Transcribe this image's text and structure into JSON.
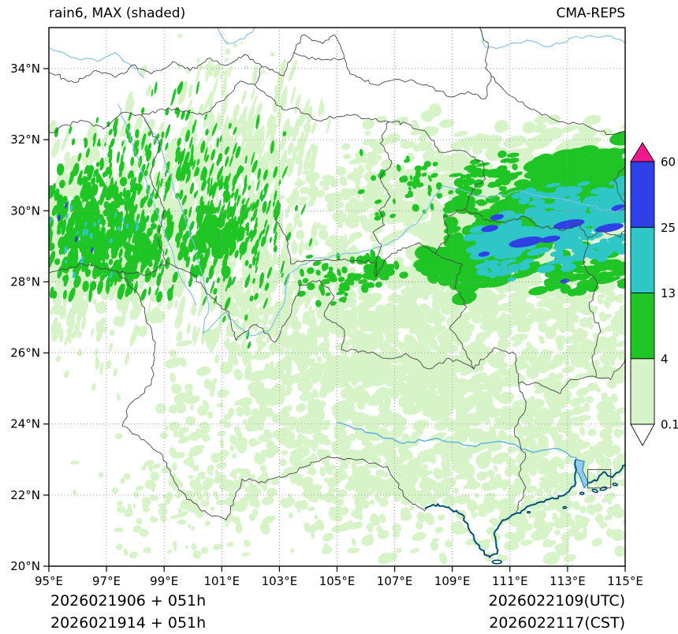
{
  "header": {
    "title": "rain6, MAX (shaded)",
    "model": "CMA-REPS"
  },
  "footer": {
    "left_lines": [
      "2026021906 + 051h",
      "2026021914 + 051h"
    ],
    "right_lines": [
      "2026022109(UTC)",
      "2026022117(CST)"
    ]
  },
  "axes": {
    "lon_min": 95,
    "lon_max": 115,
    "lat_min": 20,
    "lat_top": 35.15,
    "lon_ticks": [
      {
        "value": 95,
        "label": "95°E"
      },
      {
        "value": 97,
        "label": "97°E"
      },
      {
        "value": 99,
        "label": "99°E"
      },
      {
        "value": 101,
        "label": "101°E"
      },
      {
        "value": 103,
        "label": "103°E"
      },
      {
        "value": 105,
        "label": "105°E"
      },
      {
        "value": 107,
        "label": "107°E"
      },
      {
        "value": 109,
        "label": "109°E"
      },
      {
        "value": 111,
        "label": "111°E"
      },
      {
        "value": 113,
        "label": "113°E"
      },
      {
        "value": 115,
        "label": "115°E"
      }
    ],
    "lat_ticks": [
      {
        "value": 20,
        "label": "20°N"
      },
      {
        "value": 22,
        "label": "22°N"
      },
      {
        "value": 24,
        "label": "24°N"
      },
      {
        "value": 26,
        "label": "26°N"
      },
      {
        "value": 28,
        "label": "28°N"
      },
      {
        "value": 30,
        "label": "30°N"
      },
      {
        "value": 32,
        "label": "32°N"
      },
      {
        "value": 34,
        "label": "34°N"
      }
    ]
  },
  "colorbar": {
    "levels": [
      "0.1",
      "4",
      "13",
      "25",
      "60"
    ],
    "segment_colors": [
      "#d7f3c8",
      "#1fc524",
      "#2fc6c8",
      "#2d41e6"
    ],
    "over_color": "#ee1a8c",
    "under_color": "#ffffff"
  },
  "chart_data": {
    "type": "map",
    "title": "rain6, MAX (shaded)",
    "model": "CMA-REPS",
    "init_run": "2026021906 + 051h",
    "init_run_cst": "2026021914 + 051h",
    "valid_utc": "2026022109(UTC)",
    "valid_cst": "2026022117(CST)",
    "extent": {
      "lon": [
        95,
        115
      ],
      "lat": [
        20,
        35.15
      ]
    },
    "shading_levels_mm": [
      0.1,
      4,
      13,
      25,
      60
    ],
    "features": [
      {
        "region": "SE Tibet / W Sichuan 95-100E 28-30.5N",
        "value_mm": "4-25 with isolated 25-60 cells",
        "pattern": "dense speckled cluster"
      },
      {
        "region": "W Sichuan plateau 99-103E 28-32.5N",
        "value_mm": "0.1-13",
        "pattern": "NNE-oriented narrow streaks"
      },
      {
        "region": "Middle Yangtze band 108-115E 27.5-31.5N",
        "value_mm": "13-25 widespread, 25-60 embedded cores near 110-115E 28.5-30.5N",
        "pattern": "ENE-oriented heavy rain band"
      },
      {
        "region": "South China 99-115E 20-28N",
        "value_mm": "0.1-4",
        "pattern": "patchy light totals"
      },
      {
        "region": "North of 32N",
        "value_mm": "mostly < 0.1",
        "pattern": "dry"
      }
    ]
  },
  "precip": {
    "palette": {
      "pale": "#d7f3c8",
      "green": "#1fc524",
      "cyan": "#2fc6c8",
      "blue": "#2d41e6"
    },
    "clusters": [
      {
        "color": "pale",
        "c": [
          96.6,
          28.7
        ],
        "s": [
          1.35,
          0.95
        ],
        "n": 320,
        "rx": [
          0.07,
          0.2
        ],
        "ry": [
          0.12,
          0.3
        ],
        "rot": 12
      },
      {
        "color": "pale",
        "c": [
          97.3,
          30.0
        ],
        "s": [
          1.6,
          1.1
        ],
        "n": 300,
        "rx": [
          0.05,
          0.14
        ],
        "ry": [
          0.12,
          0.32
        ],
        "rot": 12
      },
      {
        "color": "pale",
        "c": [
          100.9,
          30.2
        ],
        "s": [
          1.5,
          1.7
        ],
        "n": 360,
        "rx": [
          0.04,
          0.11
        ],
        "ry": [
          0.14,
          0.38
        ],
        "rot": 14
      },
      {
        "color": "pale",
        "c": [
          102.3,
          31.9
        ],
        "s": [
          1.1,
          0.7
        ],
        "n": 130,
        "rx": [
          0.04,
          0.1
        ],
        "ry": [
          0.1,
          0.28
        ],
        "rot": 14
      },
      {
        "color": "pale",
        "c": [
          102.5,
          27.4
        ],
        "s": [
          1.4,
          1.1
        ],
        "n": 220,
        "rx": [
          0.05,
          0.13
        ],
        "ry": [
          0.1,
          0.26
        ],
        "rot": 10
      },
      {
        "color": "pale",
        "c": [
          104.6,
          24.8
        ],
        "s": [
          2.4,
          1.7
        ],
        "n": 420,
        "rx": [
          0.08,
          0.3
        ],
        "ry": [
          0.07,
          0.18
        ],
        "rot": -18
      },
      {
        "color": "pale",
        "c": [
          109.6,
          24.4
        ],
        "s": [
          2.5,
          1.9
        ],
        "n": 480,
        "rx": [
          0.08,
          0.32
        ],
        "ry": [
          0.07,
          0.2
        ],
        "rot": -18
      },
      {
        "color": "pale",
        "c": [
          113.6,
          22.8
        ],
        "s": [
          1.5,
          1.3
        ],
        "n": 240,
        "rx": [
          0.08,
          0.28
        ],
        "ry": [
          0.06,
          0.16
        ],
        "rot": -15
      },
      {
        "color": "pale",
        "c": [
          107.2,
          26.7
        ],
        "s": [
          1.9,
          1.2
        ],
        "n": 330,
        "rx": [
          0.08,
          0.3
        ],
        "ry": [
          0.07,
          0.18
        ],
        "rot": -15
      },
      {
        "color": "pale",
        "c": [
          101.6,
          23.4
        ],
        "s": [
          1.9,
          1.3
        ],
        "n": 190,
        "rx": [
          0.06,
          0.2
        ],
        "ry": [
          0.06,
          0.15
        ],
        "rot": -10
      },
      {
        "color": "pale",
        "c": [
          99.2,
          21.9
        ],
        "s": [
          1.5,
          0.9
        ],
        "n": 90,
        "rx": [
          0.05,
          0.16
        ],
        "ry": [
          0.05,
          0.12
        ],
        "rot": -10
      },
      {
        "color": "pale",
        "c": [
          110.6,
          29.3
        ],
        "s": [
          2.5,
          1.2
        ],
        "n": 430,
        "rx": [
          0.15,
          0.5
        ],
        "ry": [
          0.08,
          0.2
        ],
        "rot": -14
      },
      {
        "color": "pale",
        "c": [
          113.6,
          30.8
        ],
        "s": [
          1.4,
          0.8
        ],
        "n": 220,
        "rx": [
          0.15,
          0.45
        ],
        "ry": [
          0.08,
          0.18
        ],
        "rot": -12
      },
      {
        "color": "pale",
        "c": [
          108.0,
          30.9
        ],
        "s": [
          1.2,
          0.9
        ],
        "n": 150,
        "rx": [
          0.1,
          0.3
        ],
        "ry": [
          0.07,
          0.16
        ],
        "rot": -14
      },
      {
        "color": "pale",
        "c": [
          105.1,
          30.4
        ],
        "s": [
          1.5,
          1.0
        ],
        "n": 130,
        "rx": [
          0.07,
          0.2
        ],
        "ry": [
          0.06,
          0.15
        ],
        "rot": -10
      },
      {
        "color": "pale",
        "c": [
          113.9,
          26.6
        ],
        "s": [
          1.2,
          1.1
        ],
        "n": 190,
        "rx": [
          0.08,
          0.26
        ],
        "ry": [
          0.07,
          0.16
        ],
        "rot": -15
      },
      {
        "color": "pale",
        "c": [
          96.0,
          26.8
        ],
        "s": [
          0.9,
          0.8
        ],
        "n": 90,
        "rx": [
          0.04,
          0.1
        ],
        "ry": [
          0.08,
          0.2
        ],
        "rot": 10
      },
      {
        "color": "pale",
        "c": [
          101.0,
          34.2
        ],
        "s": [
          0.8,
          0.35
        ],
        "n": 25,
        "rx": [
          0.04,
          0.09
        ],
        "ry": [
          0.04,
          0.1
        ],
        "rot": 0
      },
      {
        "color": "pale",
        "c": [
          106.3,
          22.2
        ],
        "s": [
          1.3,
          0.8
        ],
        "n": 140,
        "rx": [
          0.07,
          0.22
        ],
        "ry": [
          0.06,
          0.14
        ],
        "rot": -12
      },
      {
        "color": "pale",
        "c": [
          111.6,
          21.8
        ],
        "s": [
          1.3,
          0.7
        ],
        "n": 120,
        "rx": [
          0.07,
          0.22
        ],
        "ry": [
          0.06,
          0.14
        ],
        "rot": -12
      },
      {
        "color": "green",
        "c": [
          96.4,
          29.4
        ],
        "s": [
          1.05,
          0.8
        ],
        "n": 330,
        "rx": [
          0.05,
          0.13
        ],
        "ry": [
          0.09,
          0.24
        ],
        "rot": 12
      },
      {
        "color": "green",
        "c": [
          98.2,
          28.9
        ],
        "s": [
          0.9,
          0.6
        ],
        "n": 140,
        "rx": [
          0.04,
          0.11
        ],
        "ry": [
          0.08,
          0.2
        ],
        "rot": 12
      },
      {
        "color": "green",
        "c": [
          100.0,
          30.6
        ],
        "s": [
          1.3,
          1.3
        ],
        "n": 220,
        "rx": [
          0.03,
          0.08
        ],
        "ry": [
          0.08,
          0.22
        ],
        "rot": 14
      },
      {
        "color": "green",
        "c": [
          101.9,
          29.3
        ],
        "s": [
          1.0,
          1.4
        ],
        "n": 150,
        "rx": [
          0.03,
          0.07
        ],
        "ry": [
          0.07,
          0.2
        ],
        "rot": 16
      },
      {
        "color": "green",
        "c": [
          100.75,
          29.15
        ],
        "s": [
          0.45,
          0.4
        ],
        "n": 80,
        "rx": [
          0.06,
          0.14
        ],
        "ry": [
          0.1,
          0.22
        ],
        "rot": 10
      },
      {
        "color": "green",
        "c": [
          97.1,
          31.4
        ],
        "s": [
          1.1,
          0.6
        ],
        "n": 80,
        "rx": [
          0.03,
          0.08
        ],
        "ry": [
          0.06,
          0.16
        ],
        "rot": 12
      },
      {
        "color": "green",
        "c": [
          106.4,
          28.35
        ],
        "s": [
          0.5,
          0.25
        ],
        "n": 60,
        "rx": [
          0.07,
          0.18
        ],
        "ry": [
          0.06,
          0.13
        ],
        "rot": -12
      },
      {
        "color": "green",
        "c": [
          107.6,
          30.8
        ],
        "s": [
          0.8,
          0.5
        ],
        "n": 45,
        "rx": [
          0.05,
          0.14
        ],
        "ry": [
          0.05,
          0.11
        ],
        "rot": -12
      },
      {
        "color": "green",
        "c": [
          104.9,
          28.05
        ],
        "s": [
          0.7,
          0.3
        ],
        "n": 45,
        "rx": [
          0.06,
          0.16
        ],
        "ry": [
          0.05,
          0.12
        ],
        "rot": -10
      },
      {
        "color": "cyan",
        "c": [
          96.2,
          29.4
        ],
        "s": [
          0.85,
          0.55
        ],
        "n": 24,
        "rx": [
          0.03,
          0.06
        ],
        "ry": [
          0.05,
          0.12
        ],
        "rot": 12
      }
    ],
    "streaks": [
      {
        "color": "green",
        "a": [
          108.4,
          28.35
        ],
        "b": [
          112.4,
          29.55
        ],
        "hw": 0.5,
        "n": 150,
        "len": [
          0.3,
          0.9
        ],
        "w": [
          0.08,
          0.2
        ],
        "rot": -13
      },
      {
        "color": "green",
        "a": [
          110.8,
          29.5
        ],
        "b": [
          115.1,
          30.85
        ],
        "hw": 0.62,
        "n": 190,
        "len": [
          0.35,
          1.1
        ],
        "w": [
          0.08,
          0.2
        ],
        "rot": -13
      },
      {
        "color": "green",
        "a": [
          111.9,
          30.95
        ],
        "b": [
          115.1,
          31.2
        ],
        "hw": 0.24,
        "n": 80,
        "len": [
          0.4,
          1.2
        ],
        "w": [
          0.09,
          0.2
        ],
        "rot": -9
      },
      {
        "color": "green",
        "a": [
          111.9,
          27.95
        ],
        "b": [
          115.1,
          28.5
        ],
        "hw": 0.28,
        "n": 60,
        "len": [
          0.3,
          0.8
        ],
        "w": [
          0.06,
          0.14
        ],
        "rot": -11
      },
      {
        "color": "green",
        "a": [
          107.9,
          28.5
        ],
        "b": [
          110.7,
          28.85
        ],
        "hw": 0.34,
        "n": 110,
        "len": [
          0.3,
          0.8
        ],
        "w": [
          0.09,
          0.2
        ],
        "rot": -10
      },
      {
        "color": "green",
        "a": [
          109.0,
          30.35
        ],
        "b": [
          111.6,
          30.25
        ],
        "hw": 0.3,
        "n": 45,
        "len": [
          0.2,
          0.6
        ],
        "w": [
          0.06,
          0.13
        ],
        "rot": -10
      },
      {
        "color": "green",
        "a": [
          109.2,
          31.15
        ],
        "b": [
          111.3,
          31.0
        ],
        "hw": 0.25,
        "n": 30,
        "len": [
          0.2,
          0.5
        ],
        "w": [
          0.05,
          0.12
        ],
        "rot": -10
      },
      {
        "color": "cyan",
        "a": [
          109.7,
          28.9
        ],
        "b": [
          113.3,
          29.8
        ],
        "hw": 0.36,
        "n": 110,
        "len": [
          0.3,
          0.85
        ],
        "w": [
          0.07,
          0.15
        ],
        "rot": -12
      },
      {
        "color": "cyan",
        "a": [
          112.9,
          29.55
        ],
        "b": [
          115.1,
          30.3
        ],
        "hw": 0.3,
        "n": 70,
        "len": [
          0.3,
          0.9
        ],
        "w": [
          0.07,
          0.16
        ],
        "rot": -11
      },
      {
        "color": "cyan",
        "a": [
          112.3,
          28.62
        ],
        "b": [
          114.9,
          29.12
        ],
        "hw": 0.17,
        "n": 40,
        "len": [
          0.25,
          0.7
        ],
        "w": [
          0.05,
          0.12
        ],
        "rot": -11
      },
      {
        "color": "cyan",
        "a": [
          111.3,
          30.3
        ],
        "b": [
          113.5,
          30.55
        ],
        "hw": 0.14,
        "n": 26,
        "len": [
          0.25,
          0.6
        ],
        "w": [
          0.05,
          0.1
        ],
        "rot": -10
      },
      {
        "color": "cyan",
        "a": [
          110.0,
          28.3
        ],
        "b": [
          111.6,
          28.45
        ],
        "hw": 0.15,
        "n": 22,
        "len": [
          0.2,
          0.5
        ],
        "w": [
          0.05,
          0.1
        ],
        "rot": -10
      }
    ],
    "spots": [
      {
        "color": "blue",
        "e": [
          111.55,
          29.12,
          0.6,
          0.13,
          -10
        ]
      },
      {
        "color": "blue",
        "e": [
          113.05,
          29.62,
          0.55,
          0.12,
          -10
        ]
      },
      {
        "color": "blue",
        "e": [
          114.45,
          29.52,
          0.5,
          0.11,
          -10
        ]
      },
      {
        "color": "blue",
        "e": [
          110.55,
          29.82,
          0.24,
          0.08,
          -10
        ]
      },
      {
        "color": "blue",
        "e": [
          110.3,
          29.5,
          0.3,
          0.09,
          -10
        ]
      },
      {
        "color": "blue",
        "e": [
          114.8,
          30.08,
          0.28,
          0.09,
          -10
        ]
      },
      {
        "color": "blue",
        "e": [
          110.1,
          28.78,
          0.2,
          0.07,
          -10
        ]
      },
      {
        "color": "blue",
        "e": [
          112.4,
          29.2,
          0.35,
          0.09,
          -10
        ]
      },
      {
        "color": "blue",
        "e": [
          112.9,
          28.02,
          0.16,
          0.06,
          -10
        ]
      },
      {
        "color": "blue",
        "e": [
          95.35,
          29.8,
          0.05,
          0.1,
          12
        ]
      },
      {
        "color": "blue",
        "e": [
          95.95,
          29.2,
          0.045,
          0.09,
          12
        ]
      },
      {
        "color": "blue",
        "e": [
          96.5,
          28.9,
          0.04,
          0.08,
          12
        ]
      },
      {
        "color": "blue",
        "e": [
          95.6,
          30.15,
          0.04,
          0.08,
          12
        ]
      }
    ]
  }
}
